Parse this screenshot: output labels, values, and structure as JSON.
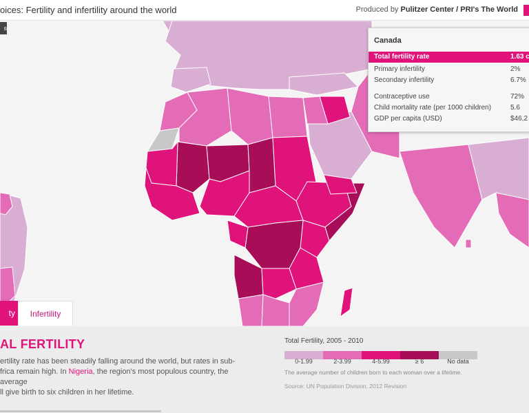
{
  "header": {
    "title": "oices: Fertility and infertility around the world",
    "credit_prefix": "Produced by",
    "credit_org": "Pulitzer Center / PRI's The World"
  },
  "tooltip": {
    "country": "Canada",
    "rows": [
      {
        "label": "Total fertility rate",
        "value": "1.63 c"
      },
      {
        "label": "Primary infertility",
        "value": "2%"
      },
      {
        "label": "Secondary infertility",
        "value": "6.7%"
      },
      {
        "label": "Contraceptive use",
        "value": "72%"
      },
      {
        "label": "Child mortality rate (per 1000 children)",
        "value": "5.6"
      },
      {
        "label": "GDP per capita (USD)",
        "value": "$46,2"
      }
    ]
  },
  "tabs": {
    "active": "ty",
    "inactive": "Infertility"
  },
  "panel": {
    "heading": "AL FERTILITY",
    "desc_1": "ertility rate has been steadily falling around the world, but rates in sub-",
    "desc_2a": "frica remain high. In ",
    "desc_link": "Nigeria",
    "desc_2b": ", the region's most populous country, the average",
    "desc_3": "ll give birth to six children in her lifetime."
  },
  "legend": {
    "title": "Total Fertility, 2005 - 2010",
    "categories": [
      {
        "label": "0-1.99",
        "color": "#d9aed3"
      },
      {
        "label": "2-3.99",
        "color": "#e46bb6"
      },
      {
        "label": "4-5.99",
        "color": "#e0137b"
      },
      {
        "label": "≥ 6",
        "color": "#a80e58"
      },
      {
        "label": "No data",
        "color": "#c8c8c8"
      }
    ],
    "note": "The average number of children born to each woman over a lifetime.",
    "source": "Source: UN Population Division, 2012 Revision"
  },
  "colors": {
    "accent": "#e0137b",
    "ocean": "#f4f4f4",
    "lowest": "#d9aed3",
    "low": "#e46bb6",
    "high": "#e0137b",
    "highest": "#a80e58",
    "nodata": "#c8c8c8"
  }
}
